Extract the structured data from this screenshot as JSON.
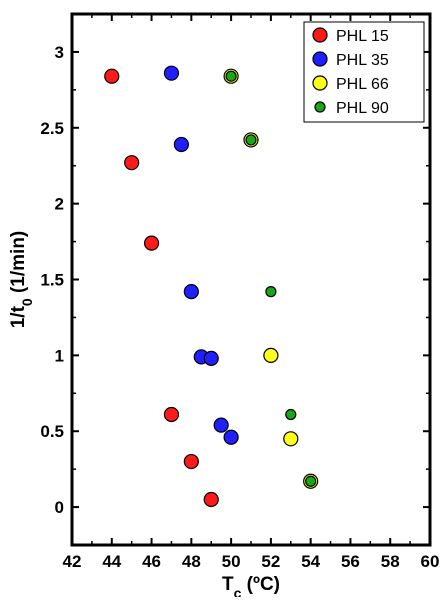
{
  "chart_data": {
    "type": "scatter",
    "xlabel": {
      "main": "T",
      "sub": "c",
      "rest": " (ºC)"
    },
    "ylabel": {
      "main": "1/t",
      "sub": "0",
      "rest": " (1/min)"
    },
    "xlim": [
      42,
      60
    ],
    "ylim": [
      -0.25,
      3.25
    ],
    "x_ticks": [
      42,
      44,
      46,
      48,
      50,
      52,
      54,
      56,
      58,
      60
    ],
    "y_ticks": [
      0,
      0.5,
      1,
      1.5,
      2,
      2.5,
      3
    ],
    "x_tick_labels": [
      "42",
      "44",
      "46",
      "48",
      "50",
      "52",
      "54",
      "56",
      "58",
      "60"
    ],
    "y_tick_labels": [
      "0",
      "0.5",
      "1",
      "1.5",
      "2",
      "2.5",
      "3"
    ],
    "grid": false,
    "legend_position": "top-right",
    "series": [
      {
        "name": "PHL 15",
        "color": "#ff1a1a",
        "marker_size": "large",
        "x": [
          44,
          45,
          46,
          47,
          48,
          49
        ],
        "y": [
          2.84,
          2.27,
          1.74,
          0.61,
          0.3,
          0.05
        ]
      },
      {
        "name": "PHL 35",
        "color": "#1f1fff",
        "marker_size": "large",
        "x": [
          47,
          47.5,
          48,
          48.5,
          49,
          49.5,
          50
        ],
        "y": [
          2.86,
          2.39,
          1.42,
          0.99,
          0.98,
          0.54,
          0.46
        ]
      },
      {
        "name": "PHL 66",
        "color": "#ffff1a",
        "marker_size": "large",
        "x": [
          50,
          51,
          52,
          53,
          54
        ],
        "y": [
          2.84,
          2.42,
          1.0,
          0.45,
          0.17
        ]
      },
      {
        "name": "PHL 90",
        "color": "#17a817",
        "marker_size": "small",
        "x": [
          50,
          51,
          52,
          53,
          54
        ],
        "y": [
          2.84,
          2.42,
          1.42,
          0.61,
          0.17
        ]
      }
    ]
  }
}
